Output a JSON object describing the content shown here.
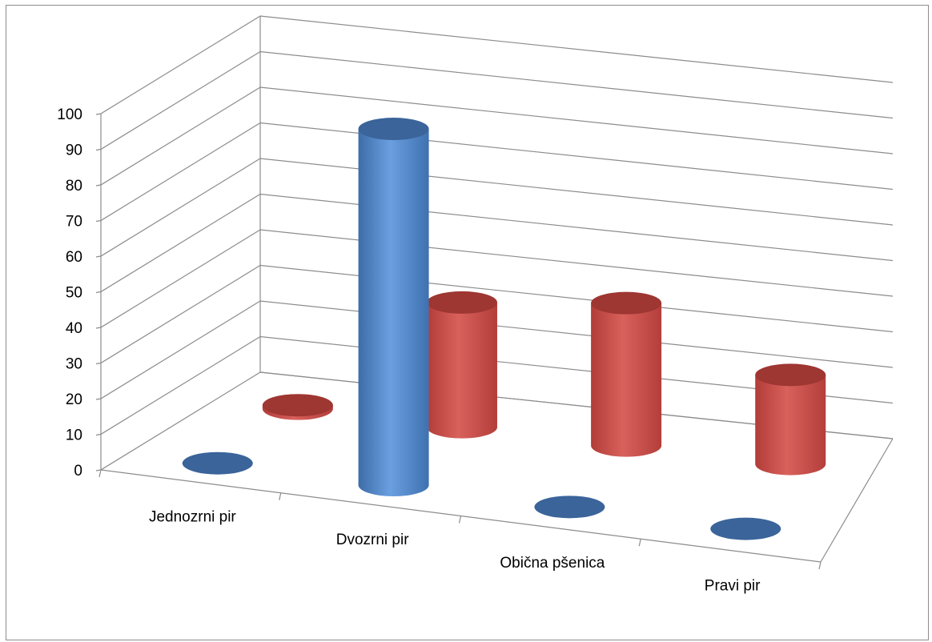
{
  "chart_data": {
    "type": "bar",
    "style": "3d-cylinder",
    "title": "",
    "xlabel": "",
    "ylabel": "",
    "categories": [
      "Jednozrni pir",
      "Dvozrni pir",
      "Obična pšenica",
      "Pravi pir"
    ],
    "series": [
      {
        "color": "#4f81bd",
        "values": [
          0,
          100,
          0,
          0
        ]
      },
      {
        "color": "#c0504d",
        "values": [
          1,
          35,
          40,
          25
        ]
      }
    ],
    "yticks": [
      "0",
      "10",
      "20",
      "30",
      "40",
      "50",
      "60",
      "70",
      "80",
      "90",
      "100"
    ],
    "ylim": [
      0,
      100
    ],
    "grid": true,
    "legend": "none"
  }
}
